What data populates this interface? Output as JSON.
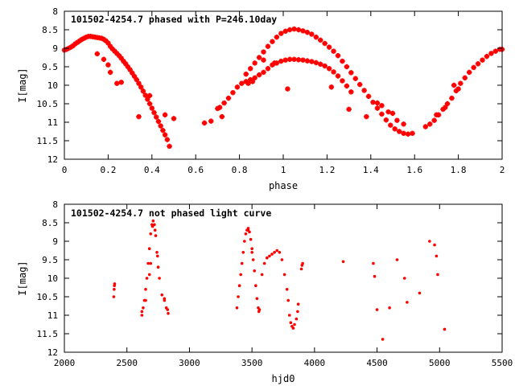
{
  "chart_data": [
    {
      "type": "scatter",
      "title": "101502-4254.7 phased with P=246.10day",
      "xlabel": "phase",
      "ylabel": "I[mag]",
      "xlim": [
        0,
        2
      ],
      "ylim": [
        12,
        8
      ],
      "y_reversed": true,
      "grid": false,
      "marker_color": "#ff0000",
      "marker": "cross",
      "xticks": [
        0,
        0.2,
        0.4,
        0.6,
        0.8,
        1,
        1.2,
        1.4,
        1.6,
        1.8,
        2
      ],
      "xtick_labels": [
        "0",
        "0.2",
        "0.4",
        "0.6",
        "0.8",
        "1",
        "1.2",
        "1.4",
        "1.6",
        "1.8",
        "2"
      ],
      "yticks": [
        8,
        8.5,
        9,
        9.5,
        10,
        10.5,
        11,
        11.5,
        12
      ],
      "ytick_labels": [
        "8",
        "8.5",
        "9",
        "9.5",
        "10",
        "10.5",
        "11",
        "11.5",
        "12"
      ],
      "points": [
        [
          0.0,
          9.05
        ],
        [
          0.01,
          9.03
        ],
        [
          0.02,
          9.0
        ],
        [
          0.03,
          8.97
        ],
        [
          0.04,
          8.93
        ],
        [
          0.05,
          8.88
        ],
        [
          0.06,
          8.84
        ],
        [
          0.07,
          8.8
        ],
        [
          0.08,
          8.76
        ],
        [
          0.09,
          8.73
        ],
        [
          0.1,
          8.7
        ],
        [
          0.11,
          8.68
        ],
        [
          0.12,
          8.68
        ],
        [
          0.13,
          8.69
        ],
        [
          0.14,
          8.7
        ],
        [
          0.15,
          8.71
        ],
        [
          0.16,
          8.72
        ],
        [
          0.17,
          8.73
        ],
        [
          0.18,
          8.76
        ],
        [
          0.19,
          8.8
        ],
        [
          0.2,
          8.86
        ],
        [
          0.21,
          8.95
        ],
        [
          0.22,
          9.02
        ],
        [
          0.23,
          9.08
        ],
        [
          0.24,
          9.14
        ],
        [
          0.25,
          9.2
        ],
        [
          0.26,
          9.27
        ],
        [
          0.27,
          9.35
        ],
        [
          0.28,
          9.42
        ],
        [
          0.29,
          9.5
        ],
        [
          0.3,
          9.58
        ],
        [
          0.31,
          9.67
        ],
        [
          0.32,
          9.76
        ],
        [
          0.33,
          9.85
        ],
        [
          0.34,
          9.95
        ],
        [
          0.35,
          10.05
        ],
        [
          0.36,
          10.16
        ],
        [
          0.37,
          10.27
        ],
        [
          0.38,
          10.38
        ],
        [
          0.39,
          10.5
        ],
        [
          0.4,
          10.62
        ],
        [
          0.41,
          10.74
        ],
        [
          0.42,
          10.86
        ],
        [
          0.43,
          10.98
        ],
        [
          0.44,
          11.1
        ],
        [
          0.45,
          11.22
        ],
        [
          0.46,
          11.34
        ],
        [
          0.47,
          11.47
        ],
        [
          0.15,
          9.15
        ],
        [
          0.18,
          9.3
        ],
        [
          0.2,
          9.45
        ],
        [
          0.21,
          9.65
        ],
        [
          0.24,
          9.95
        ],
        [
          0.26,
          9.92
        ],
        [
          0.34,
          10.85
        ],
        [
          0.39,
          10.28
        ],
        [
          0.46,
          10.8
        ],
        [
          0.48,
          11.65
        ],
        [
          0.5,
          10.9
        ],
        [
          0.64,
          11.02
        ],
        [
          0.67,
          10.97
        ],
        [
          0.7,
          10.63
        ],
        [
          0.72,
          10.85
        ],
        [
          0.71,
          10.6
        ],
        [
          0.73,
          10.48
        ],
        [
          0.75,
          10.35
        ],
        [
          0.77,
          10.2
        ],
        [
          0.79,
          10.05
        ],
        [
          0.81,
          9.95
        ],
        [
          0.83,
          9.9
        ],
        [
          0.85,
          9.85
        ],
        [
          0.87,
          9.8
        ],
        [
          0.89,
          9.72
        ],
        [
          0.91,
          9.65
        ],
        [
          0.93,
          9.55
        ],
        [
          0.95,
          9.45
        ],
        [
          0.97,
          9.4
        ],
        [
          0.99,
          9.35
        ],
        [
          1.01,
          9.32
        ],
        [
          1.03,
          9.3
        ],
        [
          1.05,
          9.3
        ],
        [
          1.07,
          9.31
        ],
        [
          1.09,
          9.32
        ],
        [
          1.11,
          9.34
        ],
        [
          1.13,
          9.36
        ],
        [
          1.15,
          9.39
        ],
        [
          1.17,
          9.43
        ],
        [
          1.19,
          9.48
        ],
        [
          1.21,
          9.55
        ],
        [
          1.23,
          9.64
        ],
        [
          1.25,
          9.75
        ],
        [
          1.27,
          9.88
        ],
        [
          1.29,
          10.02
        ],
        [
          1.31,
          10.18
        ],
        [
          0.83,
          9.7
        ],
        [
          0.85,
          9.55
        ],
        [
          0.87,
          9.4
        ],
        [
          0.89,
          9.25
        ],
        [
          0.91,
          9.1
        ],
        [
          0.93,
          8.95
        ],
        [
          0.95,
          8.82
        ],
        [
          0.97,
          8.7
        ],
        [
          0.99,
          8.6
        ],
        [
          1.01,
          8.54
        ],
        [
          1.03,
          8.5
        ],
        [
          1.05,
          8.48
        ],
        [
          1.07,
          8.5
        ],
        [
          1.09,
          8.53
        ],
        [
          1.11,
          8.57
        ],
        [
          1.13,
          8.62
        ],
        [
          1.15,
          8.7
        ],
        [
          1.17,
          8.78
        ],
        [
          1.19,
          8.87
        ],
        [
          1.21,
          8.97
        ],
        [
          1.23,
          9.08
        ],
        [
          1.25,
          9.2
        ],
        [
          1.27,
          9.35
        ],
        [
          1.29,
          9.5
        ],
        [
          1.31,
          9.66
        ],
        [
          1.33,
          9.82
        ],
        [
          1.35,
          9.98
        ],
        [
          1.37,
          10.14
        ],
        [
          1.39,
          10.3
        ],
        [
          1.41,
          10.46
        ],
        [
          1.43,
          10.62
        ],
        [
          1.45,
          10.78
        ],
        [
          1.47,
          10.94
        ],
        [
          1.49,
          11.08
        ],
        [
          1.51,
          11.18
        ],
        [
          1.53,
          11.25
        ],
        [
          1.55,
          11.3
        ],
        [
          1.57,
          11.32
        ],
        [
          1.59,
          11.3
        ],
        [
          0.84,
          9.95
        ],
        [
          0.86,
          9.9
        ],
        [
          0.91,
          9.32
        ],
        [
          0.96,
          9.4
        ],
        [
          1.02,
          10.1
        ],
        [
          1.22,
          10.05
        ],
        [
          1.3,
          10.65
        ],
        [
          1.38,
          10.85
        ],
        [
          1.43,
          10.48
        ],
        [
          1.45,
          10.55
        ],
        [
          1.48,
          10.72
        ],
        [
          1.5,
          10.76
        ],
        [
          1.52,
          10.95
        ],
        [
          1.55,
          11.05
        ],
        [
          1.65,
          11.12
        ],
        [
          1.67,
          11.05
        ],
        [
          1.69,
          10.95
        ],
        [
          1.71,
          10.8
        ],
        [
          1.73,
          10.65
        ],
        [
          1.75,
          10.5
        ],
        [
          1.77,
          10.35
        ],
        [
          1.79,
          10.15
        ],
        [
          1.81,
          9.95
        ],
        [
          1.83,
          9.8
        ],
        [
          1.85,
          9.65
        ],
        [
          1.87,
          9.52
        ],
        [
          1.89,
          9.42
        ],
        [
          1.91,
          9.32
        ],
        [
          1.93,
          9.22
        ],
        [
          1.95,
          9.14
        ],
        [
          1.97,
          9.08
        ],
        [
          1.99,
          9.03
        ],
        [
          2.0,
          9.03
        ],
        [
          1.7,
          10.8
        ],
        [
          1.74,
          10.6
        ],
        [
          1.78,
          10.0
        ],
        [
          1.8,
          10.1
        ]
      ]
    },
    {
      "type": "scatter",
      "title": "101502-4254.7 not phased light curve",
      "xlabel": "hjd0",
      "ylabel": "I[mag]",
      "xlim": [
        2000,
        5500
      ],
      "ylim": [
        12,
        8
      ],
      "y_reversed": true,
      "grid": false,
      "marker_color": "#ff0000",
      "marker": "dot",
      "xticks": [
        2000,
        2500,
        3000,
        3500,
        4000,
        4500,
        5000,
        5500
      ],
      "xtick_labels": [
        "2000",
        "2500",
        "3000",
        "3500",
        "4000",
        "4500",
        "5000",
        "5500"
      ],
      "yticks": [
        8,
        8.5,
        9,
        9.5,
        10,
        10.5,
        11,
        11.5,
        12
      ],
      "ytick_labels": [
        "8",
        "8.5",
        "9",
        "9.5",
        "10",
        "10.5",
        "11",
        "11.5",
        "12"
      ],
      "points": [
        [
          2395,
          10.5
        ],
        [
          2398,
          10.3
        ],
        [
          2400,
          10.2
        ],
        [
          2402,
          10.15
        ],
        [
          2620,
          11.0
        ],
        [
          2630,
          10.8
        ],
        [
          2640,
          10.6
        ],
        [
          2650,
          10.3
        ],
        [
          2660,
          10.0
        ],
        [
          2670,
          9.6
        ],
        [
          2680,
          9.2
        ],
        [
          2690,
          8.8
        ],
        [
          2700,
          8.55
        ],
        [
          2710,
          8.45
        ],
        [
          2720,
          8.55
        ],
        [
          2730,
          8.85
        ],
        [
          2740,
          9.3
        ],
        [
          2750,
          9.7
        ],
        [
          2760,
          10.0
        ],
        [
          2780,
          10.45
        ],
        [
          2800,
          10.6
        ],
        [
          2815,
          10.8
        ],
        [
          2830,
          10.95
        ],
        [
          2620,
          10.9
        ],
        [
          2650,
          10.6
        ],
        [
          2680,
          9.9
        ],
        [
          2690,
          9.6
        ],
        [
          2705,
          8.6
        ],
        [
          2725,
          8.7
        ],
        [
          2745,
          9.4
        ],
        [
          2800,
          10.55
        ],
        [
          2825,
          10.85
        ],
        [
          3380,
          10.8
        ],
        [
          3390,
          10.5
        ],
        [
          3400,
          10.2
        ],
        [
          3410,
          9.9
        ],
        [
          3420,
          9.6
        ],
        [
          3430,
          9.3
        ],
        [
          3440,
          9.0
        ],
        [
          3450,
          8.8
        ],
        [
          3460,
          8.7
        ],
        [
          3470,
          8.65
        ],
        [
          3480,
          8.75
        ],
        [
          3490,
          8.95
        ],
        [
          3500,
          9.2
        ],
        [
          3510,
          9.5
        ],
        [
          3520,
          9.8
        ],
        [
          3530,
          10.2
        ],
        [
          3540,
          10.55
        ],
        [
          3550,
          10.8
        ],
        [
          3555,
          10.9
        ],
        [
          3470,
          8.7
        ],
        [
          3500,
          9.3
        ],
        [
          3560,
          10.85
        ],
        [
          3580,
          9.9
        ],
        [
          3600,
          9.6
        ],
        [
          3620,
          9.45
        ],
        [
          3640,
          9.4
        ],
        [
          3660,
          9.35
        ],
        [
          3680,
          9.3
        ],
        [
          3700,
          9.25
        ],
        [
          3720,
          9.3
        ],
        [
          3740,
          9.5
        ],
        [
          3760,
          9.9
        ],
        [
          3780,
          10.3
        ],
        [
          3790,
          10.6
        ],
        [
          3800,
          11.0
        ],
        [
          3810,
          11.2
        ],
        [
          3820,
          11.3
        ],
        [
          3830,
          11.35
        ],
        [
          3840,
          11.25
        ],
        [
          3855,
          11.1
        ],
        [
          3865,
          10.9
        ],
        [
          3870,
          10.7
        ],
        [
          3895,
          9.75
        ],
        [
          3900,
          9.65
        ],
        [
          3905,
          9.6
        ],
        [
          4230,
          9.55
        ],
        [
          4470,
          9.6
        ],
        [
          4480,
          9.95
        ],
        [
          4500,
          10.85
        ],
        [
          4545,
          11.65
        ],
        [
          4600,
          10.8
        ],
        [
          4660,
          9.5
        ],
        [
          4720,
          10.0
        ],
        [
          4740,
          10.65
        ],
        [
          4840,
          10.4
        ],
        [
          4920,
          9.0
        ],
        [
          4960,
          9.1
        ],
        [
          4975,
          9.4
        ],
        [
          4985,
          9.9
        ],
        [
          5040,
          11.38
        ]
      ]
    }
  ]
}
